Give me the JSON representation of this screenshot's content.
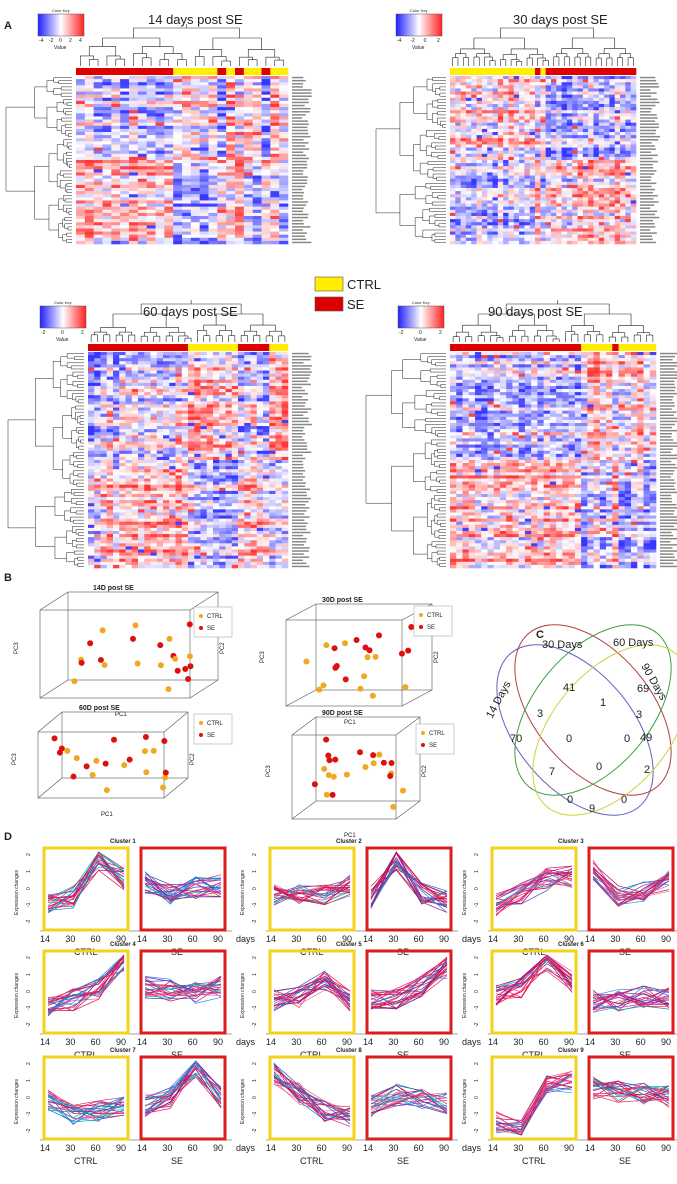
{
  "panels": {
    "A": "A",
    "B": "B",
    "C": "C",
    "D": "D"
  },
  "heatmaps": [
    {
      "id": "hm14",
      "title": "14 days post SE",
      "key": "Color Key",
      "value": "Value",
      "ticks": [
        "-4",
        "-2",
        "0",
        "2",
        "4"
      ],
      "cond": "rrrrrrrrrrryyyyyryryyryy",
      "seed": 3
    },
    {
      "id": "hm30",
      "title": "30 days post SE",
      "key": "Color Key",
      "value": "Value",
      "ticks": [
        "-4",
        "-2",
        "0",
        "2"
      ],
      "cond": "yyyyyyyyyyyyyyyyryrrrrrrrrrrrrrrrrr",
      "seed": 7
    },
    {
      "id": "hm60",
      "title": "60 days post SE",
      "key": "Color Key",
      "value": "Value",
      "ticks": [
        "-2",
        "0",
        "2"
      ],
      "cond": "rrrrrrrrrrrrrrrryyyyyyyyrrrrryyy",
      "seed": 11
    },
    {
      "id": "hm90",
      "title": "90 days post SE",
      "key": "Color Key",
      "value": "Value",
      "ticks": [
        "-2",
        "0",
        "2"
      ],
      "cond": "rrrrrrrrrrrrrrrrrrrrryyyyyryyyyyy",
      "seed": 19
    }
  ],
  "legend_main": [
    {
      "label": "CTRL",
      "color": "#ffee00"
    },
    {
      "label": "SE",
      "color": "#dd0000"
    }
  ],
  "pca": [
    {
      "title": "14D post SE",
      "xlabel": "PC1",
      "ylabel": "PC3",
      "zlabel": "PC2"
    },
    {
      "title": "30D post SE",
      "xlabel": "PC1",
      "ylabel": "PC3",
      "zlabel": "PC2"
    },
    {
      "title": "60D post SE",
      "xlabel": "PC1",
      "ylabel": "PC3",
      "zlabel": "PC2"
    },
    {
      "title": "90D post SE",
      "xlabel": "PC1",
      "ylabel": "PC3",
      "zlabel": "PC2"
    }
  ],
  "pca_legend": [
    {
      "label": "CTRL",
      "color": "#f0a820"
    },
    {
      "label": "SE",
      "color": "#dd1010"
    }
  ],
  "venn": {
    "labels": [
      "14 Days",
      "30 Days",
      "60 Days",
      "90 Days"
    ],
    "counts": {
      "only14": "70",
      "only30": "41",
      "only60": "69",
      "only90": "49",
      "a14_30": "3",
      "a30_60": "1",
      "a60_90": "3",
      "a14_90": "9",
      "c1": "0",
      "c2": "0",
      "c3": "7",
      "c4": "0",
      "c5": "2",
      "c6": "0",
      "c7": "0"
    }
  },
  "clusters": {
    "titles": [
      "Cluster 1",
      "Cluster 2",
      "Cluster 3",
      "Cluster 4",
      "Cluster 5",
      "Cluster 6",
      "Cluster 7",
      "Cluster 8",
      "Cluster 9"
    ],
    "ylabel": "Expression changes",
    "x_ticks": [
      "14",
      "30",
      "60",
      "90"
    ],
    "days": "days",
    "groups": [
      "CTRL",
      "SE"
    ],
    "ctrl_means": [
      [
        -1,
        -0.5,
        1.8,
        0.6
      ],
      [
        -0.3,
        -0.2,
        -0.4,
        0.2
      ],
      [
        -1,
        -0.3,
        0.6,
        0.8
      ],
      [
        -1,
        -0.5,
        0.2,
        2
      ],
      [
        -0.5,
        -0.3,
        0.8,
        -0.5
      ],
      [
        -0.2,
        0.3,
        2,
        0.6
      ],
      [
        -0.2,
        -1,
        -0.8,
        -0.5
      ],
      [
        1.5,
        0.3,
        -0.8,
        -1.2
      ],
      [
        -1.5,
        -2,
        0.8,
        1
      ]
    ],
    "se_means": [
      [
        0.4,
        -0.3,
        0.1,
        0.2
      ],
      [
        -0.5,
        1.8,
        -0.3,
        -0.8
      ],
      [
        1.2,
        -0.5,
        -0.2,
        0.5
      ],
      [
        0.3,
        0.1,
        -0.1,
        0.3
      ],
      [
        -0.5,
        -0.4,
        0.4,
        1.5
      ],
      [
        -0.6,
        -0.5,
        -0.3,
        -0.4
      ],
      [
        -0.5,
        0,
        2,
        0
      ],
      [
        -0.5,
        0.2,
        0,
        -0.3
      ],
      [
        0.6,
        0.4,
        0.3,
        0.1
      ]
    ]
  }
}
